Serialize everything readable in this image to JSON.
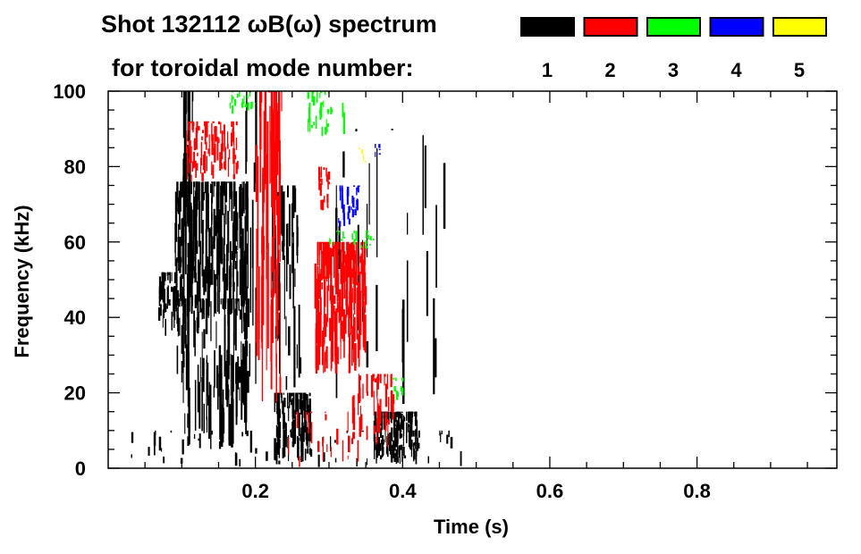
{
  "chart_data": {
    "type": "heatmap",
    "title_line1": "Shot 132112 ωB(ω) spectrum",
    "title_line2": "for toroidal mode number:",
    "xlabel": "Time (s)",
    "ylabel": "Frequency (kHz)",
    "xlim": [
      0,
      0.99
    ],
    "ylim": [
      0,
      100
    ],
    "xticks": [
      0.2,
      0.4,
      0.6,
      0.8
    ],
    "xtick_labels": [
      "0.2",
      "0.4",
      "0.6",
      "0.8"
    ],
    "yticks": [
      0,
      20,
      40,
      60,
      80,
      100
    ],
    "ytick_labels": [
      "0",
      "20",
      "40",
      "60",
      "80",
      "100"
    ],
    "x_minor_step": 0.05,
    "y_minor_step": 5,
    "legend": [
      {
        "label": "1",
        "color": "#000000"
      },
      {
        "label": "2",
        "color": "#ff0000"
      },
      {
        "label": "3",
        "color": "#00ff00"
      },
      {
        "label": "4",
        "color": "#0000ff"
      },
      {
        "label": "5",
        "color": "#ffff00"
      }
    ],
    "regions": [
      {
        "mode": 1,
        "t": [
          0.065,
          0.1
        ],
        "f": [
          35,
          52
        ],
        "density": 40
      },
      {
        "mode": 1,
        "t": [
          0.09,
          0.19
        ],
        "f": [
          40,
          76
        ],
        "density": 260
      },
      {
        "mode": 1,
        "t": [
          0.09,
          0.19
        ],
        "f": [
          5,
          45
        ],
        "density": 140
      },
      {
        "mode": 1,
        "t": [
          0.1,
          0.115
        ],
        "f": [
          50,
          100
        ],
        "density": 25
      },
      {
        "mode": 1,
        "t": [
          0.185,
          0.2
        ],
        "f": [
          0,
          100
        ],
        "density": 14
      },
      {
        "mode": 1,
        "t": [
          0.22,
          0.26
        ],
        "f": [
          20,
          75
        ],
        "density": 50
      },
      {
        "mode": 1,
        "t": [
          0.225,
          0.275
        ],
        "f": [
          1,
          20
        ],
        "density": 110
      },
      {
        "mode": 1,
        "t": [
          0.36,
          0.42
        ],
        "f": [
          1,
          15
        ],
        "density": 170
      },
      {
        "mode": 1,
        "t": [
          0.03,
          0.48
        ],
        "f": [
          0,
          10
        ],
        "density": 60
      },
      {
        "mode": 1,
        "t": [
          0.3,
          0.46
        ],
        "f": [
          15,
          90
        ],
        "density": 25
      },
      {
        "mode": 2,
        "t": [
          0.105,
          0.175
        ],
        "f": [
          76,
          92
        ],
        "density": 90
      },
      {
        "mode": 2,
        "t": [
          0.2,
          0.235
        ],
        "f": [
          15,
          100
        ],
        "density": 70
      },
      {
        "mode": 2,
        "t": [
          0.28,
          0.35
        ],
        "f": [
          25,
          60
        ],
        "density": 200
      },
      {
        "mode": 2,
        "t": [
          0.285,
          0.3
        ],
        "f": [
          68,
          80
        ],
        "density": 20
      },
      {
        "mode": 2,
        "t": [
          0.33,
          0.39
        ],
        "f": [
          5,
          25
        ],
        "density": 50
      },
      {
        "mode": 2,
        "t": [
          0.24,
          0.34
        ],
        "f": [
          0,
          15
        ],
        "density": 20
      },
      {
        "mode": 3,
        "t": [
          0.165,
          0.2
        ],
        "f": [
          94,
          100
        ],
        "density": 20
      },
      {
        "mode": 3,
        "t": [
          0.27,
          0.32
        ],
        "f": [
          88,
          100
        ],
        "density": 35
      },
      {
        "mode": 3,
        "t": [
          0.3,
          0.36
        ],
        "f": [
          58,
          63
        ],
        "density": 30
      },
      {
        "mode": 3,
        "t": [
          0.385,
          0.4
        ],
        "f": [
          17,
          24
        ],
        "density": 10
      },
      {
        "mode": 4,
        "t": [
          0.31,
          0.34
        ],
        "f": [
          64,
          75
        ],
        "density": 30
      },
      {
        "mode": 4,
        "t": [
          0.36,
          0.368
        ],
        "f": [
          82,
          86
        ],
        "density": 5
      },
      {
        "mode": 5,
        "t": [
          0.34,
          0.348
        ],
        "f": [
          81,
          85
        ],
        "density": 4
      }
    ]
  }
}
